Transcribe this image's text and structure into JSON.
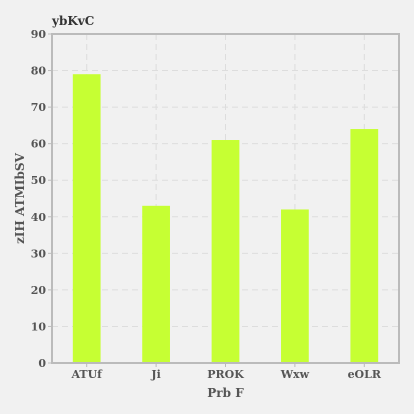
{
  "chart_data": {
    "type": "bar",
    "title": "ybKvC",
    "xlabel": "Prb F",
    "ylabel": "zIH ATMIbSV",
    "categories": [
      "ATUf",
      "Ji",
      "PROK",
      "Wxw",
      "eOLR"
    ],
    "values": [
      79,
      43,
      61,
      42,
      64
    ],
    "ylim": [
      0,
      90
    ],
    "yticks": [
      0,
      10,
      20,
      30,
      40,
      50,
      60,
      70,
      80,
      90
    ],
    "grid": true,
    "legend": "none",
    "colors": {
      "bar": "#c6ff33",
      "background": "#f1f1f1",
      "plot_border": "#bbbbbb",
      "grid": "#dddddd"
    }
  }
}
